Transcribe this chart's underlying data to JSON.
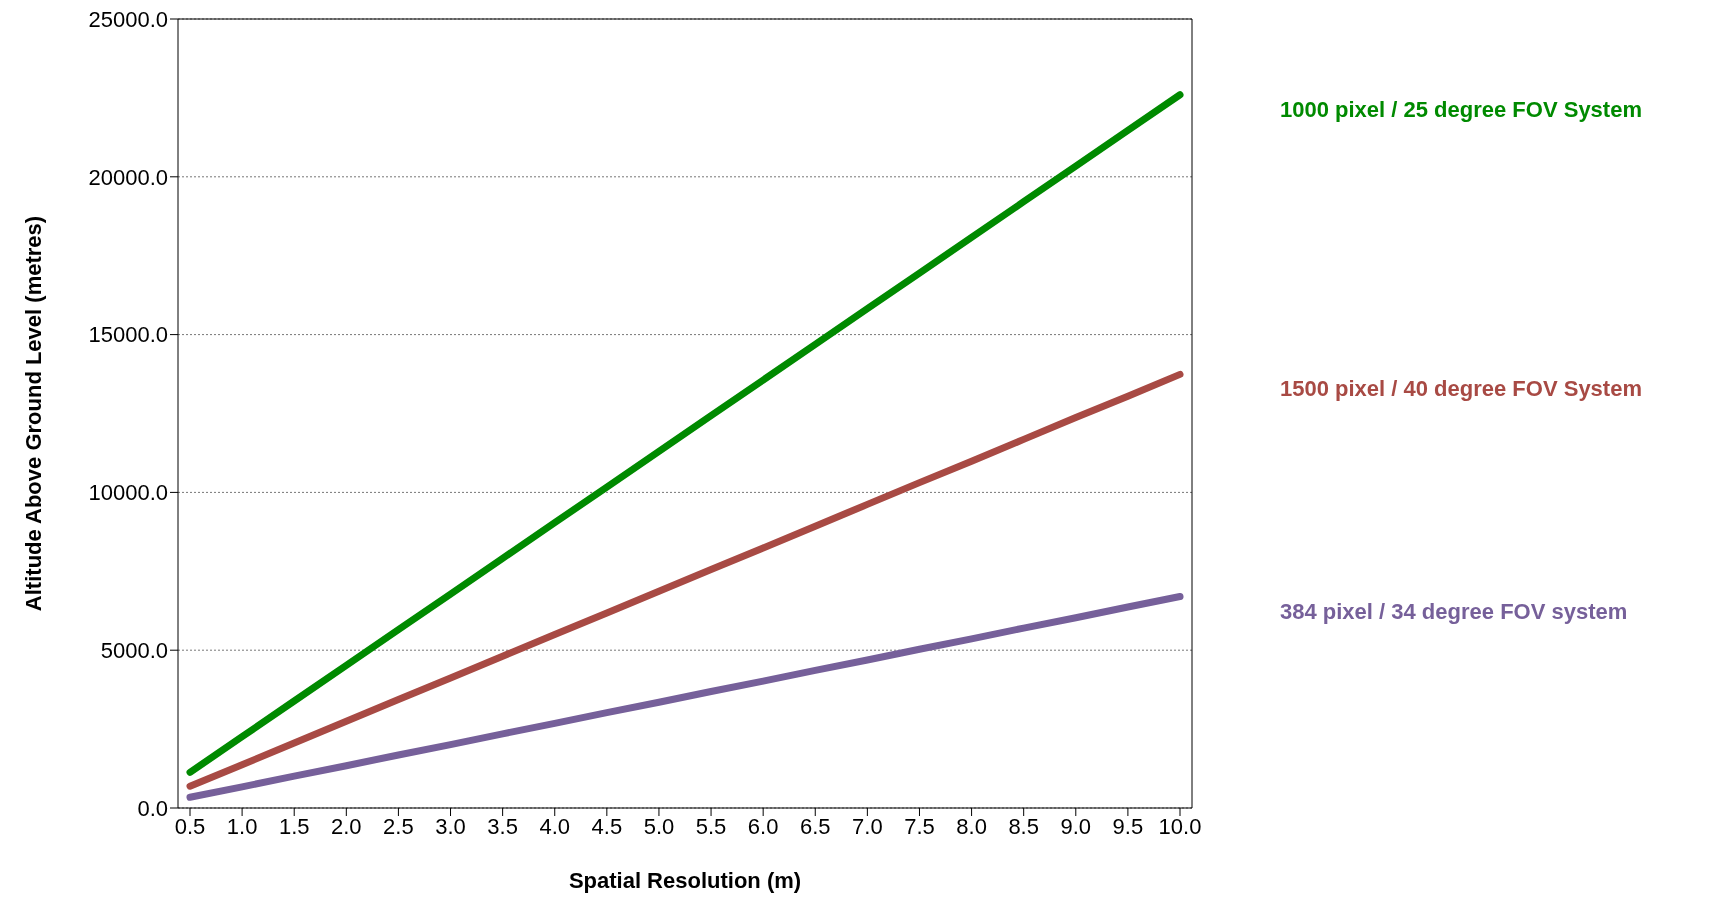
{
  "chart_data": {
    "type": "line",
    "xlabel": "Spatial Resolution (m)",
    "ylabel": "Altitude Above Ground Level (metres)",
    "categories": [
      "0.5",
      "1.0",
      "1.5",
      "2.0",
      "2.5",
      "3.0",
      "3.5",
      "4.0",
      "4.5",
      "5.0",
      "5.5",
      "6.0",
      "6.5",
      "7.0",
      "7.5",
      "8.0",
      "8.5",
      "9.0",
      "9.5",
      "10.0"
    ],
    "series": [
      {
        "name": "1000 pixel / 25 degree  FOV System",
        "color": "#008a00",
        "values": [
          1130,
          2260,
          3390,
          4520,
          5650,
          6780,
          7910,
          9040,
          10170,
          11300,
          12430,
          13560,
          14690,
          15820,
          16950,
          18080,
          19210,
          20340,
          21470,
          22600
        ]
      },
      {
        "name": "1500 pixel / 40 degree  FOV System",
        "color": "#a84a44",
        "values": [
          690,
          1370,
          2060,
          2750,
          3440,
          4120,
          4810,
          5500,
          6180,
          6870,
          7560,
          8240,
          8930,
          9620,
          10310,
          10990,
          11680,
          12370,
          13050,
          13740
        ]
      },
      {
        "name": "384 pixel / 34 degree FOV system",
        "color": "#76609a",
        "values": [
          340,
          670,
          1010,
          1340,
          1680,
          2010,
          2350,
          2680,
          3020,
          3350,
          3690,
          4020,
          4360,
          4690,
          5030,
          5360,
          5700,
          6030,
          6370,
          6700
        ]
      }
    ],
    "ylim": [
      0,
      25000
    ],
    "yticks": [
      {
        "value": 0,
        "label": "0.0"
      },
      {
        "value": 5000,
        "label": "5000.0"
      },
      {
        "value": 10000,
        "label": "10000.0"
      },
      {
        "value": 15000,
        "label": "15000.0"
      },
      {
        "value": 20000,
        "label": "20000.0"
      },
      {
        "value": 25000,
        "label": "25000.0"
      }
    ],
    "grid": "y",
    "marker": "none",
    "line_style": "solid"
  }
}
